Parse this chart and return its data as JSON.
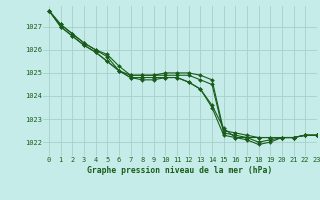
{
  "title": "Graphe pression niveau de la mer (hPa)",
  "background_color": "#c5ece8",
  "grid_color": "#a8cfc8",
  "line_color": "#1a5c1a",
  "xlim": [
    -0.5,
    23
  ],
  "ylim": [
    1021.4,
    1027.9
  ],
  "yticks": [
    1022,
    1023,
    1024,
    1025,
    1026,
    1027
  ],
  "xticks": [
    0,
    1,
    2,
    3,
    4,
    5,
    6,
    7,
    8,
    9,
    10,
    11,
    12,
    13,
    14,
    15,
    16,
    17,
    18,
    19,
    20,
    21,
    22,
    23
  ],
  "series": [
    [
      1027.7,
      1027.1,
      1026.7,
      1026.3,
      1026.0,
      1025.8,
      1025.3,
      1024.9,
      1024.9,
      1024.9,
      1025.0,
      1025.0,
      1025.0,
      1024.9,
      1024.7,
      1022.5,
      1022.4,
      1022.3,
      1022.2,
      1022.2,
      1022.2,
      1022.2,
      1022.3,
      1022.3
    ],
    [
      1027.7,
      1027.1,
      1026.7,
      1026.3,
      1026.0,
      1025.7,
      1025.1,
      1024.9,
      1024.9,
      1024.9,
      1024.9,
      1024.9,
      1024.9,
      1024.7,
      1024.5,
      1022.4,
      1022.3,
      1022.2,
      1022.2,
      1022.2,
      1022.2,
      1022.2,
      1022.3,
      1022.3
    ],
    [
      1027.7,
      1027.0,
      1026.6,
      1026.2,
      1025.9,
      1025.5,
      1025.1,
      1024.8,
      1024.8,
      1024.8,
      1024.8,
      1024.8,
      1024.6,
      1024.3,
      1023.6,
      1022.6,
      1022.2,
      1022.2,
      1022.0,
      1022.1,
      1022.2,
      1022.2,
      1022.3,
      1022.3
    ],
    [
      1027.7,
      1027.0,
      1026.6,
      1026.2,
      1025.9,
      1025.5,
      1025.1,
      1024.8,
      1024.7,
      1024.7,
      1024.8,
      1024.8,
      1024.6,
      1024.3,
      1023.5,
      1022.3,
      1022.2,
      1022.1,
      1021.9,
      1022.0,
      1022.2,
      1022.2,
      1022.3,
      1022.3
    ]
  ]
}
